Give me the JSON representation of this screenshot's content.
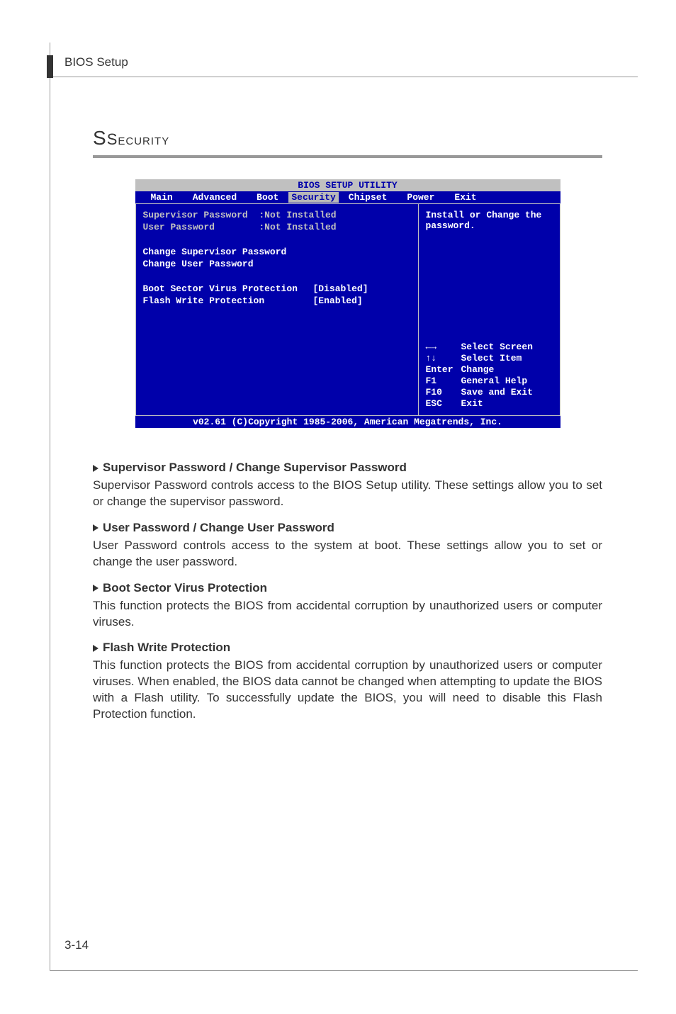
{
  "header": {
    "breadcrumb": "BIOS Setup"
  },
  "section": {
    "title": "Security"
  },
  "bios": {
    "titlebar": "BIOS SETUP UTILITY",
    "tabs": {
      "main": "Main",
      "advanced": "Advanced",
      "boot": "Boot",
      "security": "Security",
      "chipset": "Chipset",
      "power": "Power",
      "exit": "Exit"
    },
    "left_panel": {
      "supervisor_label": "Supervisor Password",
      "supervisor_value": ":Not Installed",
      "user_label": "User Password",
      "user_value": ":Not Installed",
      "change_supervisor": "Change Supervisor Password",
      "change_user": "Change User Password",
      "boot_sector_label": "Boot Sector Virus Protection",
      "boot_sector_value": "[Disabled]",
      "flash_write_label": "Flash Write Protection",
      "flash_write_value": "[Enabled]"
    },
    "right_panel": {
      "help_text": "Install or Change the password.",
      "keys": {
        "k1": "←→",
        "a1": "Select Screen",
        "k2": "↑↓",
        "a2": "Select Item",
        "k3": "Enter",
        "a3": "Change",
        "k4": "F1",
        "a4": "General Help",
        "k5": "F10",
        "a5": "Save and Exit",
        "k6": "ESC",
        "a6": "Exit"
      }
    },
    "footer": "v02.61 (C)Copyright 1985-2006, American Megatrends, Inc."
  },
  "descriptions": {
    "d1": {
      "heading": "Supervisor Password / Change Supervisor Password",
      "body": "Supervisor Password controls access to the BIOS Setup utility. These settings allow you to set or change the supervisor password."
    },
    "d2": {
      "heading": "User Password / Change User Password",
      "body": "User Password controls access to the system at boot. These settings allow you to set or change the user password."
    },
    "d3": {
      "heading": "Boot Sector Virus Protection",
      "body": "This function protects the BIOS from accidental corruption by unauthorized users or computer viruses."
    },
    "d4": {
      "heading": "Flash Write Protection",
      "body": "This function protects the BIOS from accidental corruption by unauthorized users or computer viruses. When enabled, the BIOS data cannot be changed when attempting to update the BIOS with a Flash utility. To successfully update the BIOS, you will need to disable this Flash Protection function."
    }
  },
  "page_number": "3-14"
}
